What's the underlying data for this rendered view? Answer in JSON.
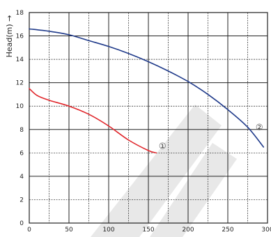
{
  "chart_data": {
    "type": "line",
    "ylabel": "Head(m)",
    "ylabel_arrow": "→",
    "xlim": [
      0,
      300
    ],
    "ylim": [
      0,
      18
    ],
    "x_ticks": [
      0,
      50,
      100,
      150,
      200,
      250,
      300
    ],
    "y_ticks": [
      0,
      2,
      4,
      6,
      8,
      10,
      12,
      14,
      16,
      18
    ],
    "grid": true,
    "series": [
      {
        "name": "①",
        "color": "#e0262b",
        "x": [
          0,
          10,
          25,
          50,
          75,
          100,
          125,
          150,
          160
        ],
        "y": [
          11.5,
          10.9,
          10.5,
          10.0,
          9.3,
          8.3,
          7.1,
          6.2,
          6.0
        ]
      },
      {
        "name": "②",
        "color": "#1f3a8a",
        "x": [
          0,
          25,
          50,
          75,
          100,
          125,
          150,
          175,
          200,
          225,
          250,
          275,
          295
        ],
        "y": [
          16.6,
          16.4,
          16.1,
          15.6,
          15.1,
          14.5,
          13.8,
          13.0,
          12.1,
          11.0,
          9.7,
          8.2,
          6.5
        ]
      }
    ],
    "labels": [
      {
        "text": "①",
        "x": 163,
        "y": 6.6
      },
      {
        "text": "②",
        "x": 285,
        "y": 8.2
      }
    ]
  }
}
